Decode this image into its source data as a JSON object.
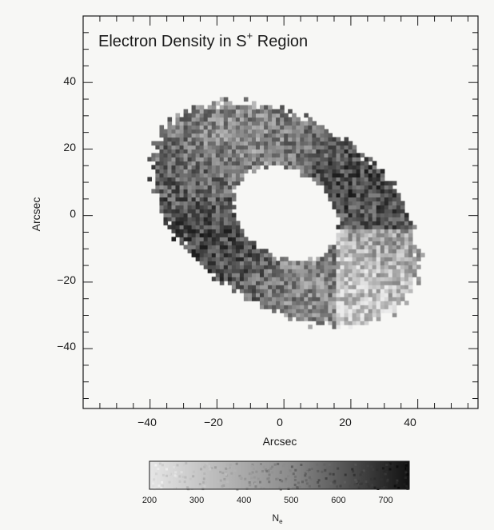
{
  "chart_data": {
    "type": "heatmap",
    "title": "Electron Density in S",
    "title_superscript": "+",
    "title_suffix": " Region",
    "xlabel": "Arcsec",
    "ylabel": "Arcsec",
    "xlim": [
      -60,
      58
    ],
    "ylim": [
      -58,
      60
    ],
    "x_ticks": [
      -40,
      -20,
      0,
      20,
      40
    ],
    "x_tick_labels": [
      "−40",
      "−20",
      "0",
      "20",
      "40"
    ],
    "y_ticks": [
      40,
      20,
      0,
      -20,
      -40
    ],
    "y_tick_labels": [
      "40",
      "20",
      "0",
      "−20",
      "−40"
    ],
    "grid": false,
    "colorbar": {
      "label": "N",
      "label_subscript": "e",
      "range": [
        200,
        750
      ],
      "ticks": [
        200,
        300,
        400,
        500,
        600,
        700
      ],
      "tick_labels": [
        "200",
        "300",
        "400",
        "500",
        "600",
        "700"
      ],
      "color_low": "#e6e6e6",
      "color_high": "#111111"
    },
    "ring": {
      "center": [
        0,
        0
      ],
      "outer_semi_axes": [
        44,
        28
      ],
      "inner_semi_axes": [
        17,
        13
      ],
      "tilt_deg": -33,
      "typical_density": [
        250,
        700
      ]
    }
  }
}
